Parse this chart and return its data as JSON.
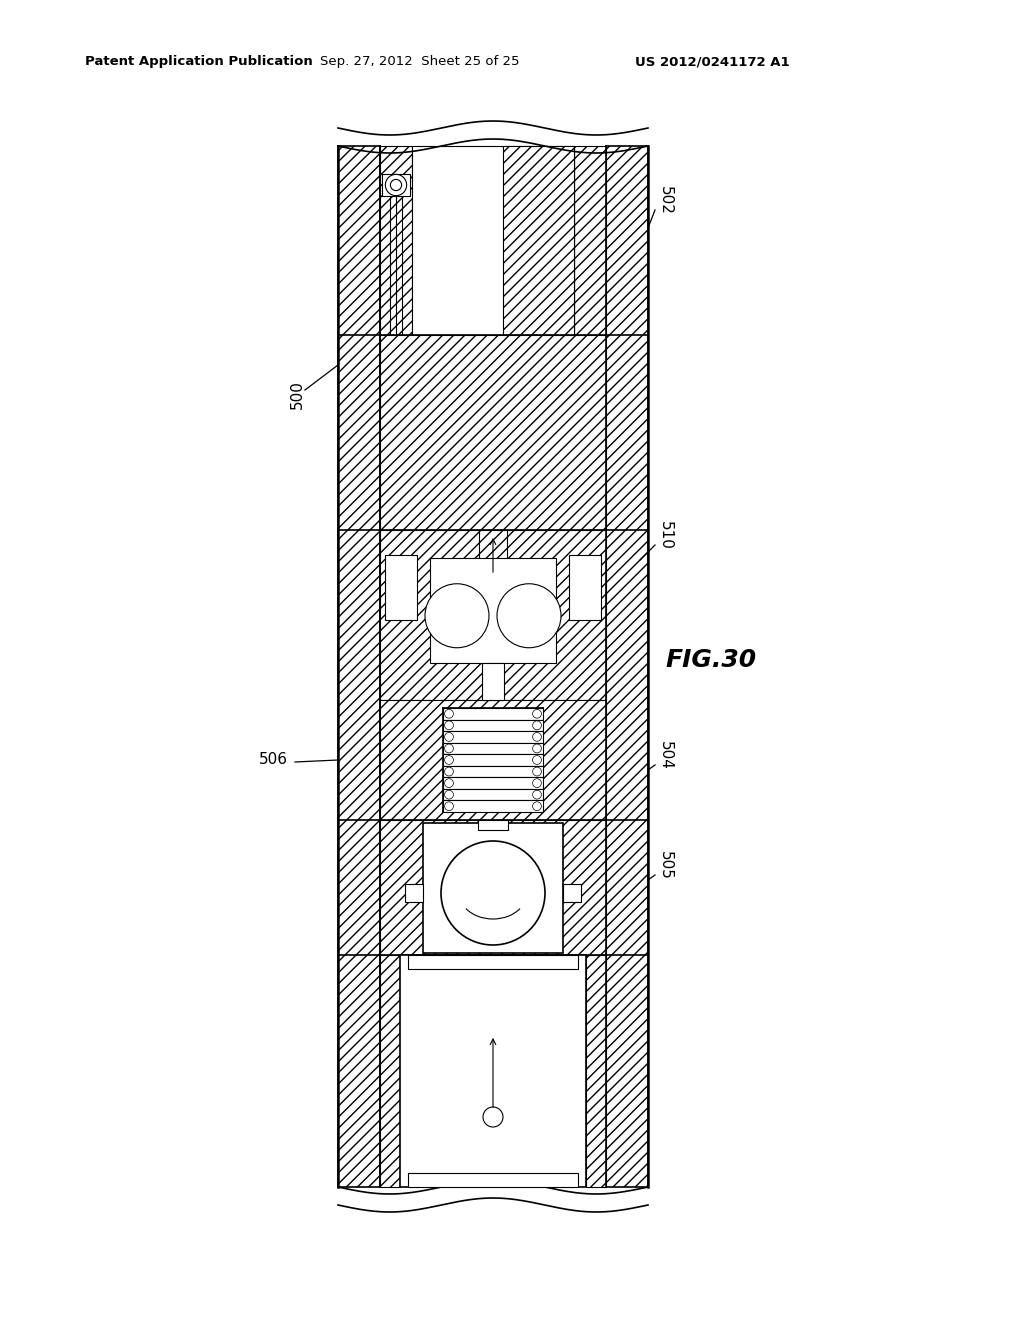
{
  "header_left": "Patent Application Publication",
  "header_center": "Sep. 27, 2012  Sheet 25 of 25",
  "header_right": "US 2012/0241172 A1",
  "fig_label": "FIG.30",
  "background_color": "#ffffff"
}
